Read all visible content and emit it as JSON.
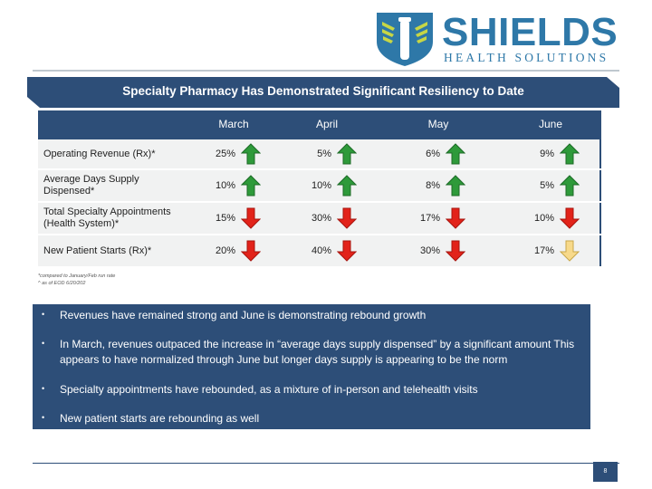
{
  "logo": {
    "name": "SHIELDS",
    "subtitle": "HEALTH SOLUTIONS"
  },
  "title": "Specialty Pharmacy Has Demonstrated Significant Resiliency to Date",
  "table": {
    "columns": [
      "March",
      "April",
      "May",
      "June"
    ],
    "rows": [
      {
        "label": "Operating Revenue (Rx)*",
        "cells": [
          {
            "value": "25%",
            "arrow": "up"
          },
          {
            "value": "5%",
            "arrow": "up"
          },
          {
            "value": "6%",
            "arrow": "up"
          },
          {
            "value": "9%",
            "arrow": "up"
          }
        ]
      },
      {
        "label": "Average Days Supply Dispensed*",
        "cells": [
          {
            "value": "10%",
            "arrow": "up"
          },
          {
            "value": "10%",
            "arrow": "up"
          },
          {
            "value": "8%",
            "arrow": "up"
          },
          {
            "value": "5%",
            "arrow": "up"
          }
        ]
      },
      {
        "label": "Total Specialty Appointments (Health System)*",
        "cells": [
          {
            "value": "15%",
            "arrow": "down"
          },
          {
            "value": "30%",
            "arrow": "down"
          },
          {
            "value": "17%",
            "arrow": "down"
          },
          {
            "value": "10%",
            "arrow": "down"
          }
        ]
      },
      {
        "label": "New Patient Starts (Rx)*",
        "cells": [
          {
            "value": "20%",
            "arrow": "down"
          },
          {
            "value": "40%",
            "arrow": "down"
          },
          {
            "value": "30%",
            "arrow": "down"
          },
          {
            "value": "17%",
            "arrow": "down-yellow"
          }
        ]
      }
    ]
  },
  "footnotes": [
    "*compared to January/Feb run rate",
    "^ as of EOD 6/20/202"
  ],
  "bullets": [
    "Revenues have remained strong and June is demonstrating rebound growth",
    "In March, revenues outpaced the increase in “average days supply dispensed” by a significant amount This appears to have normalized through June but longer days supply is appearing to be the norm",
    "Specialty appointments have rebounded, as a mixture of in-person and telehealth visits",
    "New patient starts are rebounding as well"
  ],
  "page_number": "8",
  "colors": {
    "navy": "#2d4e78",
    "brand_blue": "#2e78a8",
    "up": "#2e9a3a",
    "down": "#e2231a",
    "warn": "#f7d98a"
  }
}
